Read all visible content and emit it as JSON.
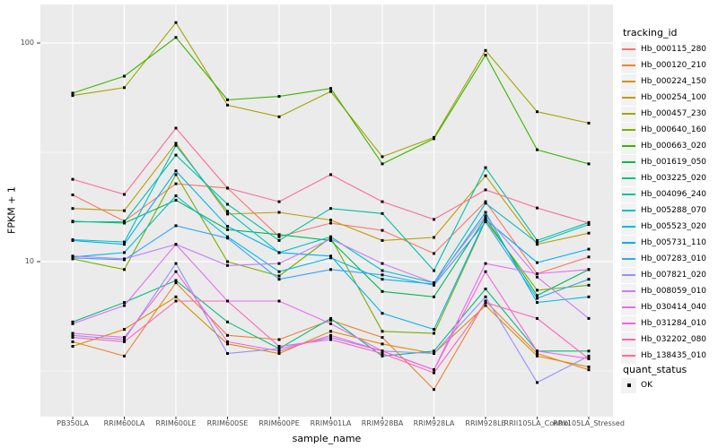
{
  "figure": {
    "background": "#FFFFFF",
    "panel_background": "#EBEBEB",
    "gridline_color": "#FFFFFF",
    "axis_text_color": "#4D4D4D",
    "tick_mark_color": "#333333",
    "point_color": "#000000",
    "legend_key_background": "#F2F2F2"
  },
  "axes": {
    "y_scale": "log10",
    "y_ticks": [
      {
        "label": "100",
        "value": 100
      },
      {
        "label": "10",
        "value": 10
      }
    ],
    "y_minor_gridlines": [
      31.62,
      3.162
    ]
  },
  "legend": {
    "tracking_title": "tracking_id",
    "quant_title": "quant_status",
    "quant_items": [
      {
        "label": "OK",
        "marker": "black-square"
      }
    ]
  },
  "chart_data": {
    "type": "line",
    "title": "",
    "xlabel": "sample_name",
    "ylabel": "FPKM + 1",
    "grid": true,
    "legend_position": "right",
    "ylim_log": [
      2.0,
      150
    ],
    "point_marker": "square",
    "categories": [
      "PB350LA",
      "RRIM600LA",
      "RRIM600LE",
      "RRIM600SE",
      "RRIM600PE",
      "RRIM901LA",
      "RRIM928BA",
      "RRIM928LA",
      "RRIM928LE",
      "RRII105LA_Control",
      "RRII105LA_Stressed"
    ],
    "series": [
      {
        "name": "Hb_000115_280",
        "color": "#F8766D",
        "values": [
          20.2,
          15.3,
          22.7,
          21.7,
          13.0,
          15.0,
          13.9,
          10.9,
          18.8,
          8.8,
          10.5
        ]
      },
      {
        "name": "Hb_000120_210",
        "color": "#EA8331",
        "values": [
          4.3,
          3.7,
          8.0,
          4.6,
          4.4,
          5.4,
          4.5,
          2.6,
          6.6,
          3.8,
          3.2
        ]
      },
      {
        "name": "Hb_000224_150",
        "color": "#D89000",
        "values": [
          4.1,
          4.9,
          6.9,
          4.2,
          3.8,
          4.8,
          4.2,
          3.8,
          6.3,
          3.7,
          3.3
        ]
      },
      {
        "name": "Hb_000254_100",
        "color": "#C09B00",
        "values": [
          17.5,
          17.1,
          34.8,
          16.5,
          16.8,
          15.5,
          12.5,
          12.9,
          24.7,
          12.0,
          13.5
        ]
      },
      {
        "name": "Hb_000457_230",
        "color": "#A3A500",
        "values": [
          57.5,
          62.5,
          124.0,
          52.0,
          46.0,
          60.0,
          30.2,
          37.0,
          92.5,
          48.5,
          43.0
        ]
      },
      {
        "name": "Hb_000640_160",
        "color": "#7CAE00",
        "values": [
          10.3,
          9.2,
          25.0,
          10.0,
          8.6,
          12.9,
          4.8,
          4.7,
          15.4,
          7.4,
          7.8
        ]
      },
      {
        "name": "Hb_000663_020",
        "color": "#39B600",
        "values": [
          59.0,
          70.5,
          106.0,
          55.0,
          57.0,
          62.0,
          28.0,
          36.5,
          88.0,
          32.5,
          28.0
        ]
      },
      {
        "name": "Hb_001619_050",
        "color": "#00BB4E",
        "values": [
          15.3,
          15.0,
          19.1,
          14.0,
          13.3,
          12.5,
          7.3,
          6.9,
          15.9,
          7.0,
          9.2
        ]
      },
      {
        "name": "Hb_003225_020",
        "color": "#00BF7D",
        "values": [
          5.3,
          6.5,
          8.2,
          5.3,
          4.0,
          5.5,
          3.7,
          3.9,
          7.5,
          3.9,
          3.9
        ]
      },
      {
        "name": "Hb_004096_240",
        "color": "#00C1A3",
        "values": [
          15.2,
          15.2,
          30.7,
          18.3,
          12.5,
          17.5,
          16.6,
          9.1,
          26.9,
          12.5,
          15.1
        ]
      },
      {
        "name": "Hb_005288_070",
        "color": "#00BFC4",
        "values": [
          12.6,
          12.3,
          34.0,
          17.0,
          11.0,
          13.0,
          9.1,
          8.0,
          18.5,
          12.2,
          14.8
        ]
      },
      {
        "name": "Hb_005523_020",
        "color": "#00BAE0",
        "values": [
          10.5,
          11.0,
          20.0,
          13.0,
          9.0,
          10.4,
          8.3,
          7.9,
          16.8,
          6.5,
          6.9
        ]
      },
      {
        "name": "Hb_005731_110",
        "color": "#00B0F6",
        "values": [
          12.5,
          12.0,
          26.0,
          14.5,
          11.0,
          10.6,
          5.8,
          4.9,
          15.6,
          9.9,
          11.4
        ]
      },
      {
        "name": "Hb_007283_010",
        "color": "#35A2FF",
        "values": [
          10.4,
          10.2,
          14.6,
          12.8,
          8.3,
          9.2,
          8.7,
          7.8,
          15.2,
          6.8,
          8.3
        ]
      },
      {
        "name": "Hb_007821_020",
        "color": "#9590FF",
        "values": [
          4.6,
          4.4,
          9.8,
          3.8,
          4.0,
          4.5,
          3.9,
          3.8,
          6.9,
          2.8,
          3.7
        ]
      },
      {
        "name": "Hb_008059_010",
        "color": "#C77CFF",
        "values": [
          10.6,
          10.3,
          12.0,
          9.6,
          9.8,
          12.7,
          9.8,
          8.0,
          16.2,
          8.5,
          5.5
        ]
      },
      {
        "name": "Hb_030414_040",
        "color": "#E76BF3",
        "values": [
          5.2,
          6.3,
          12.0,
          6.6,
          6.6,
          5.2,
          3.9,
          3.2,
          9.8,
          8.8,
          9.2
        ]
      },
      {
        "name": "Hb_031284_010",
        "color": "#FA62DB",
        "values": [
          4.7,
          4.5,
          9.0,
          4.3,
          3.9,
          4.6,
          3.9,
          3.2,
          9.0,
          3.9,
          3.6
        ]
      },
      {
        "name": "Hb_032202_080",
        "color": "#FF62BC",
        "values": [
          4.5,
          4.3,
          6.6,
          6.6,
          4.1,
          4.4,
          3.8,
          3.1,
          6.5,
          5.5,
          3.6
        ]
      },
      {
        "name": "Hb_138435_010",
        "color": "#FF6A98",
        "values": [
          23.8,
          20.3,
          40.8,
          21.7,
          18.8,
          25.0,
          18.8,
          15.6,
          21.3,
          17.6,
          15.0
        ]
      }
    ]
  }
}
